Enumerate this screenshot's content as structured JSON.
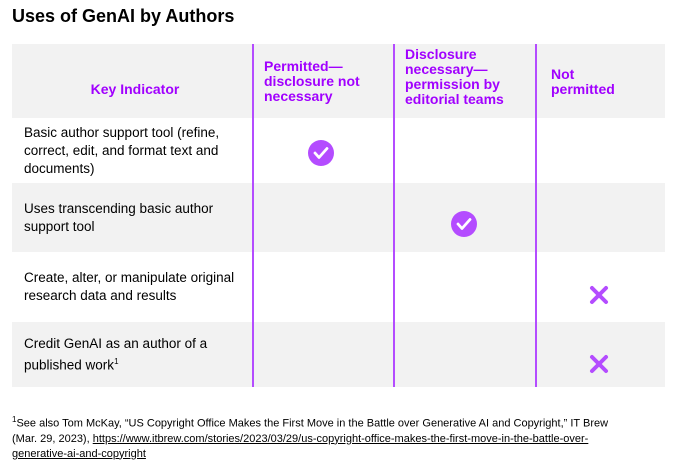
{
  "header": {
    "title": "Uses of GenAI by Authors"
  },
  "table": {
    "columns": [
      "Key Indicator",
      "Permitted—disclosure not necessary",
      "Disclosure necessary—permission by editorial teams",
      "Not permitted"
    ],
    "rows": [
      {
        "label": "Basic author support tool (refine, correct, edit, and format text and documents)"
      },
      {
        "label": "Uses transcending basic author support tool"
      },
      {
        "label": "Create, alter, or manipulate original research data and results"
      },
      {
        "label": "Credit GenAI as an author of a published work",
        "footnote_ref": "1"
      }
    ]
  },
  "footnote": {
    "ref": "1",
    "text": "See also Tom McKay, “US Copyright Office Makes the First Move in the Battle over Generative AI and Copyright,” IT Brew (Mar. 29, 2023), ",
    "link": "https://www.itbrew.com/stories/2023/03/29/us-copyright-office-makes-the-first-move-in-the-battle-over-generative-ai-and-copyright"
  }
}
